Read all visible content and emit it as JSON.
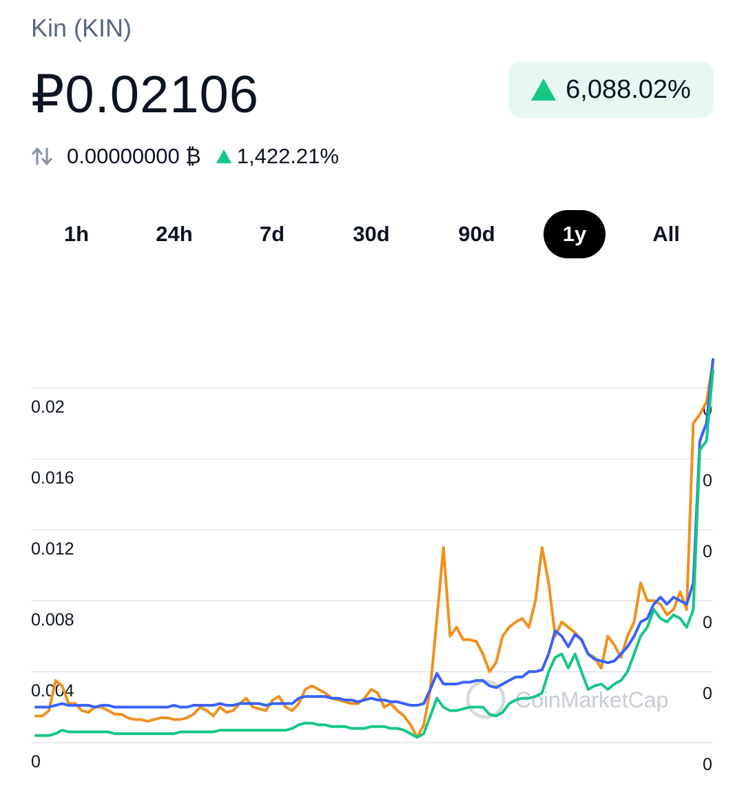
{
  "header": {
    "coin_name": "Kin (KIN)",
    "price": "₽0.02106",
    "change_percent": "6,088.02%",
    "btc_price": "0.00000000",
    "btc_symbol": "₿",
    "btc_change_percent": "1,422.21%"
  },
  "tabs": [
    {
      "label": "1h",
      "active": false
    },
    {
      "label": "24h",
      "active": false
    },
    {
      "label": "7d",
      "active": false
    },
    {
      "label": "30d",
      "active": false
    },
    {
      "label": "90d",
      "active": false
    },
    {
      "label": "1y",
      "active": true
    },
    {
      "label": "All",
      "active": false
    }
  ],
  "watermark": "CoinMarketCap",
  "colors": {
    "up": "#16c784",
    "up_bg": "#e6f8f1",
    "blue": "#3861fb",
    "green": "#16c784",
    "orange": "#f0901e"
  },
  "icons": {
    "swap": "swap-vertical-icon",
    "up": "triangle-up-icon"
  },
  "chart_data": {
    "type": "line",
    "y_left_ticks": [
      "0",
      "0.004",
      "0.008",
      "0.012",
      "0.016",
      "0.02"
    ],
    "y_right_ticks": [
      "0",
      "0",
      "0",
      "0",
      "0",
      "0"
    ],
    "ylim": [
      0,
      0.024
    ],
    "grid": true,
    "series": [
      {
        "color": "#f0901e",
        "values": [
          0.0015,
          0.0015,
          0.0018,
          0.0035,
          0.0032,
          0.0022,
          0.0022,
          0.0018,
          0.0017,
          0.002,
          0.002,
          0.0018,
          0.0016,
          0.0016,
          0.0014,
          0.0013,
          0.0013,
          0.0012,
          0.0013,
          0.0014,
          0.0014,
          0.0013,
          0.0013,
          0.0014,
          0.0016,
          0.002,
          0.0018,
          0.0015,
          0.002,
          0.0017,
          0.0018,
          0.0022,
          0.0025,
          0.002,
          0.0019,
          0.0018,
          0.0024,
          0.0026,
          0.002,
          0.0018,
          0.0022,
          0.003,
          0.0032,
          0.003,
          0.0028,
          0.0025,
          0.0024,
          0.0023,
          0.0022,
          0.0022,
          0.0025,
          0.003,
          0.0028,
          0.002,
          0.0022,
          0.0018,
          0.0015,
          0.001,
          0.0003,
          0.001,
          0.003,
          0.007,
          0.011,
          0.006,
          0.0065,
          0.0058,
          0.0058,
          0.0057,
          0.005,
          0.004,
          0.0045,
          0.006,
          0.0065,
          0.0068,
          0.007,
          0.0065,
          0.008,
          0.011,
          0.009,
          0.006,
          0.0068,
          0.0065,
          0.0062,
          0.0058,
          0.005,
          0.0048,
          0.0042,
          0.006,
          0.0055,
          0.0048,
          0.006,
          0.0068,
          0.009,
          0.008,
          0.008,
          0.0078,
          0.0072,
          0.0075,
          0.0085,
          0.0075,
          0.018,
          0.0185,
          0.0192,
          0.0215
        ]
      },
      {
        "color": "#3861fb",
        "values": [
          0.002,
          0.002,
          0.002,
          0.0021,
          0.0022,
          0.0021,
          0.0021,
          0.0021,
          0.0021,
          0.002,
          0.0021,
          0.0021,
          0.002,
          0.002,
          0.002,
          0.002,
          0.002,
          0.002,
          0.002,
          0.002,
          0.002,
          0.0021,
          0.002,
          0.002,
          0.0021,
          0.0021,
          0.0021,
          0.0021,
          0.0022,
          0.0021,
          0.0021,
          0.0022,
          0.0022,
          0.0022,
          0.0022,
          0.0021,
          0.0022,
          0.0022,
          0.0022,
          0.0022,
          0.0025,
          0.0026,
          0.0026,
          0.0026,
          0.0026,
          0.0025,
          0.0025,
          0.0024,
          0.0024,
          0.0023,
          0.0024,
          0.0025,
          0.0024,
          0.0024,
          0.0023,
          0.0023,
          0.0022,
          0.0021,
          0.0021,
          0.0022,
          0.003,
          0.0039,
          0.0033,
          0.0033,
          0.0033,
          0.0034,
          0.0034,
          0.0035,
          0.0035,
          0.0032,
          0.0031,
          0.0033,
          0.0035,
          0.0037,
          0.0037,
          0.004,
          0.004,
          0.0041,
          0.005,
          0.0063,
          0.006,
          0.0054,
          0.0061,
          0.0058,
          0.005,
          0.0047,
          0.0046,
          0.0045,
          0.0046,
          0.005,
          0.0054,
          0.006,
          0.0068,
          0.007,
          0.0078,
          0.0082,
          0.0078,
          0.0082,
          0.008,
          0.0078,
          0.009,
          0.017,
          0.018,
          0.0216
        ]
      },
      {
        "color": "#16c784",
        "values": [
          0.0004,
          0.0004,
          0.0004,
          0.0005,
          0.0007,
          0.0006,
          0.0006,
          0.0006,
          0.0006,
          0.0006,
          0.0006,
          0.0006,
          0.0005,
          0.0005,
          0.0005,
          0.0005,
          0.0005,
          0.0005,
          0.0005,
          0.0005,
          0.0005,
          0.0005,
          0.0006,
          0.0006,
          0.0006,
          0.0006,
          0.0006,
          0.0006,
          0.0007,
          0.0007,
          0.0007,
          0.0007,
          0.0007,
          0.0007,
          0.0007,
          0.0007,
          0.0007,
          0.0007,
          0.0007,
          0.0008,
          0.001,
          0.0011,
          0.0011,
          0.001,
          0.001,
          0.0009,
          0.0009,
          0.0009,
          0.0008,
          0.0008,
          0.0008,
          0.0009,
          0.0009,
          0.0009,
          0.0008,
          0.0008,
          0.0007,
          0.0005,
          0.0003,
          0.0005,
          0.0015,
          0.0025,
          0.002,
          0.0018,
          0.0018,
          0.0019,
          0.002,
          0.002,
          0.002,
          0.0016,
          0.0015,
          0.0017,
          0.0022,
          0.0024,
          0.0025,
          0.0025,
          0.0026,
          0.0028,
          0.004,
          0.0048,
          0.005,
          0.0042,
          0.005,
          0.004,
          0.003,
          0.0032,
          0.0033,
          0.003,
          0.0033,
          0.0035,
          0.004,
          0.005,
          0.006,
          0.0065,
          0.0075,
          0.007,
          0.0068,
          0.0072,
          0.007,
          0.0065,
          0.0075,
          0.0165,
          0.017,
          0.021
        ]
      }
    ]
  }
}
